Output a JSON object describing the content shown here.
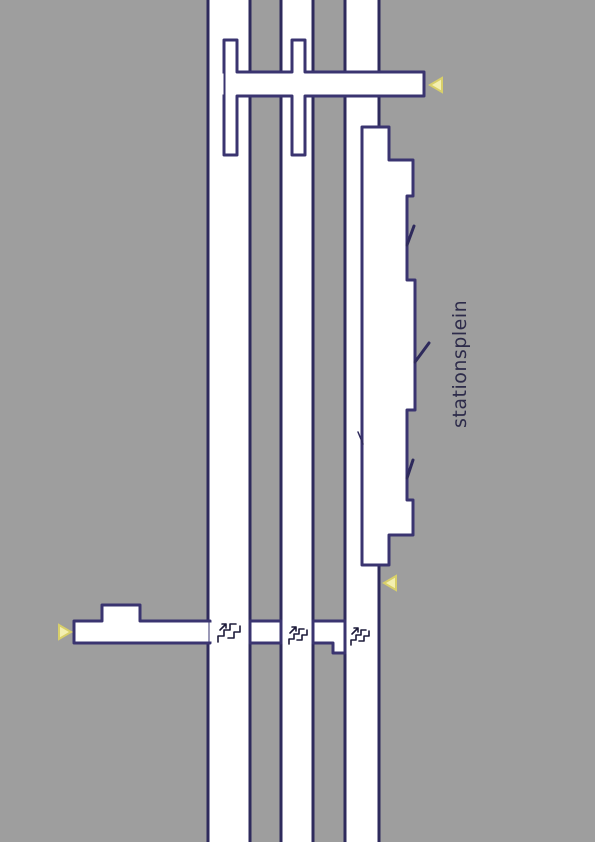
{
  "map": {
    "background_color": "#9e9e9e",
    "walkway_fill": "#ffffff",
    "outline_color": "#3a3470",
    "entrance_marker_color": "#f3efb0",
    "labels": {
      "square_name": "stationsplein"
    },
    "icons": {
      "escalator": "escalator-icon",
      "entrance": "entrance-triangle-icon"
    }
  }
}
